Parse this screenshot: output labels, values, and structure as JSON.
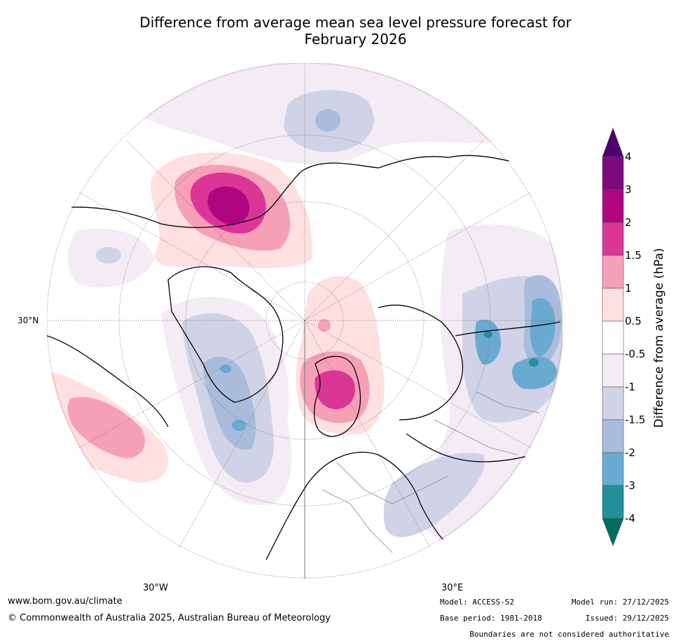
{
  "title": {
    "line1": "Difference from average mean sea level pressure forecast for",
    "line2": "February 2026"
  },
  "map": {
    "projection": "north polar stereographic (clipped)",
    "lat_label_30N": "30°N",
    "lon_label_30W": "30°W",
    "lon_label_30E": "30°E"
  },
  "colorbar": {
    "title": "Difference from average (hPa)",
    "ticks": [
      "4",
      "3",
      "2",
      "1.5",
      "1",
      "0.5",
      "-0.5",
      "-1",
      "-1.5",
      "-2",
      "-3",
      "-4"
    ],
    "colors": [
      "#4b006e",
      "#7b0a7d",
      "#b0057e",
      "#dc3598",
      "#f6a0b8",
      "#fde0df",
      "#ffffff",
      "#f4ecf4",
      "#d0d3e6",
      "#a9bcdb",
      "#6aaad0",
      "#22909a",
      "#006e5e"
    ]
  },
  "footer": {
    "url": "www.bom.gov.au/climate",
    "copyright": "© Commonwealth of Australia 2025, Australian Bureau of Meteorology",
    "model": "Model: ACCESS-S2",
    "base_period": "Base period: 1981-2018",
    "model_run": "Model run: 27/12/2025",
    "issued": "Issued: 29/12/2025",
    "disclaimer": "Boundaries are not considered authoritative"
  }
}
